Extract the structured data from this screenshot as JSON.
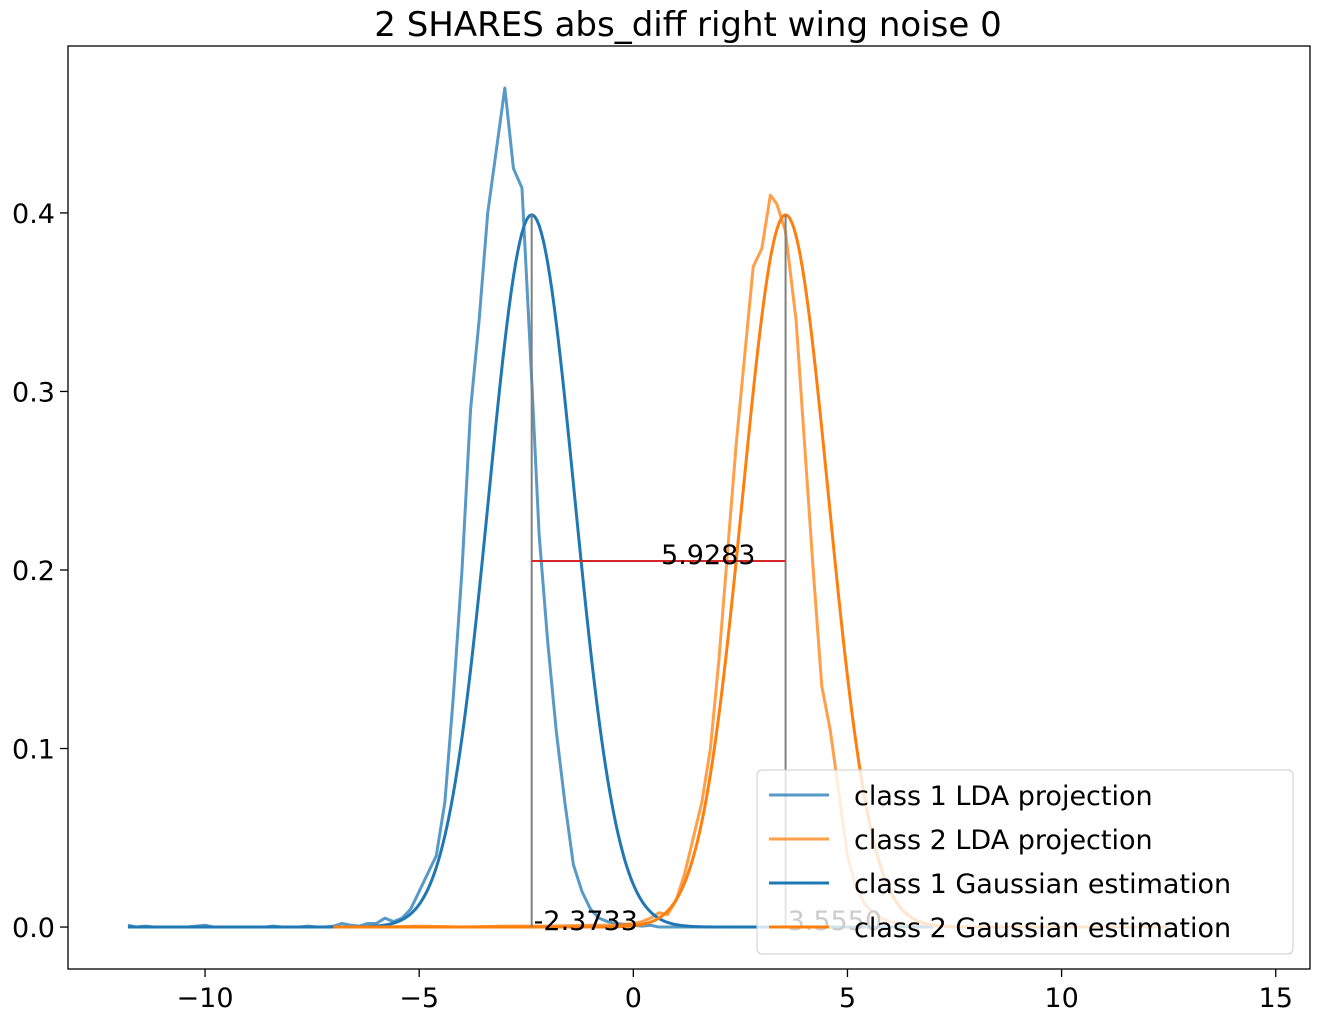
{
  "chart_data": {
    "type": "line",
    "title": "2 SHARES abs_diff right wing noise 0",
    "xlabel": "",
    "ylabel": "",
    "xlim": [
      -13.2,
      15.8
    ],
    "ylim": [
      -0.0235,
      0.4935
    ],
    "xticks": [
      -10,
      -5,
      0,
      5,
      10,
      15
    ],
    "xtick_labels": [
      "−10",
      "−5",
      "0",
      "5",
      "10",
      "15"
    ],
    "yticks": [
      0.0,
      0.1,
      0.2,
      0.3,
      0.4
    ],
    "ytick_labels": [
      "0.0",
      "0.1",
      "0.2",
      "0.3",
      "0.4"
    ],
    "grid": false,
    "legend_position": "lower right",
    "colors": {
      "class1": "#1f77b4",
      "class2": "#ff7f0e",
      "vline": "#7f7f7f",
      "hline": "#d62728"
    },
    "series": [
      {
        "name": "class 1 LDA projection",
        "color": "#1f77b4",
        "alpha": 0.75,
        "x": [
          -11.8,
          -11.6,
          -11.4,
          -11.2,
          -11.0,
          -10.8,
          -10.6,
          -10.4,
          -10.2,
          -10.0,
          -9.8,
          -9.6,
          -9.4,
          -9.2,
          -9.0,
          -8.8,
          -8.6,
          -8.4,
          -8.2,
          -8.0,
          -7.8,
          -7.6,
          -7.4,
          -7.2,
          -7.0,
          -6.8,
          -6.6,
          -6.4,
          -6.2,
          -6.0,
          -5.8,
          -5.6,
          -5.4,
          -5.2,
          -5.0,
          -4.8,
          -4.6,
          -4.4,
          -4.2,
          -4.0,
          -3.8,
          -3.6,
          -3.4,
          -3.2,
          -3.0,
          -2.8,
          -2.6,
          -2.4,
          -2.2,
          -2.0,
          -1.8,
          -1.6,
          -1.4,
          -1.2,
          -1.0,
          -0.8,
          -0.6,
          -0.4,
          -0.2,
          0.0,
          0.2,
          0.4,
          0.6,
          0.8,
          1.0,
          1.5,
          2.0,
          2.5,
          3.0,
          3.5,
          4.0,
          5.0,
          6.0,
          7.0
        ],
        "y": [
          0.001,
          0.0,
          0.0005,
          0.0,
          0.0,
          0.0,
          0.0,
          0.0,
          0.0005,
          0.001,
          0.0,
          0.0,
          0.0,
          0.0,
          0.0,
          0.0,
          0.0,
          0.0005,
          0.0,
          0.0,
          0.0,
          0.0005,
          0.0,
          0.0,
          0.0005,
          0.002,
          0.001,
          0.0005,
          0.002,
          0.002,
          0.005,
          0.003,
          0.005,
          0.01,
          0.02,
          0.03,
          0.04,
          0.07,
          0.13,
          0.2,
          0.29,
          0.34,
          0.4,
          0.435,
          0.47,
          0.425,
          0.414,
          0.32,
          0.22,
          0.16,
          0.11,
          0.07,
          0.035,
          0.02,
          0.01,
          0.005,
          0.003,
          0.002,
          0.0015,
          0.001,
          0.0005,
          0.001,
          0.0,
          0.0,
          0.0,
          0.0,
          0.0,
          0.0,
          0.0,
          0.0,
          0.0,
          0.0,
          0.0,
          0.0
        ]
      },
      {
        "name": "class 2 LDA projection",
        "color": "#ff7f0e",
        "alpha": 0.75,
        "x": [
          -7.0,
          -6.0,
          -5.0,
          -4.0,
          -3.0,
          -2.0,
          -1.0,
          -0.5,
          0.0,
          0.2,
          0.4,
          0.6,
          0.8,
          1.0,
          1.2,
          1.4,
          1.6,
          1.8,
          2.0,
          2.2,
          2.4,
          2.6,
          2.8,
          3.0,
          3.2,
          3.35,
          3.55,
          3.8,
          4.0,
          4.2,
          4.4,
          4.6,
          4.8,
          5.0,
          5.2,
          5.4,
          5.6,
          5.8,
          6.0,
          6.2,
          6.4,
          6.6,
          6.8,
          7.0,
          7.5,
          8.0,
          9.0,
          10.0,
          11.0,
          12.0,
          12.5
        ],
        "y": [
          0.0,
          0.0,
          0.0005,
          0.0,
          0.0005,
          0.0005,
          0.001,
          0.001,
          0.002,
          0.003,
          0.005,
          0.008,
          0.007,
          0.015,
          0.03,
          0.05,
          0.07,
          0.1,
          0.15,
          0.21,
          0.27,
          0.32,
          0.37,
          0.38,
          0.41,
          0.405,
          0.39,
          0.34,
          0.27,
          0.2,
          0.135,
          0.11,
          0.075,
          0.04,
          0.022,
          0.013,
          0.008,
          0.005,
          0.003,
          0.002,
          0.001,
          0.001,
          0.0005,
          0.0005,
          0.0,
          0.0,
          0.0,
          0.0,
          0.0,
          0.0,
          0.0
        ]
      },
      {
        "name": "class 1 Gaussian estimation",
        "color": "#1f77b4",
        "alpha": 1.0,
        "type": "gaussian",
        "mean": -2.3733,
        "std": 1.0,
        "x_range": [
          -11.8,
          7.0
        ]
      },
      {
        "name": "class 2 Gaussian estimation",
        "color": "#ff7f0e",
        "alpha": 1.0,
        "type": "gaussian",
        "mean": 3.555,
        "std": 1.0,
        "x_range": [
          -7.0,
          12.5
        ]
      }
    ],
    "annotations": [
      {
        "text": "-2.3733",
        "x": -2.3733,
        "y": 0.0
      },
      {
        "text": "3.5550",
        "x": 3.555,
        "y": 0.0
      },
      {
        "text": "5.9283",
        "x": 0.6,
        "y": 0.205
      }
    ],
    "vlines": [
      {
        "x": -2.3733,
        "y0": 0.0,
        "y1": 0.3989
      },
      {
        "x": 3.555,
        "y0": 0.0,
        "y1": 0.3989
      }
    ],
    "hline": {
      "y": 0.205,
      "x0": -2.3733,
      "x1": 3.555
    }
  }
}
